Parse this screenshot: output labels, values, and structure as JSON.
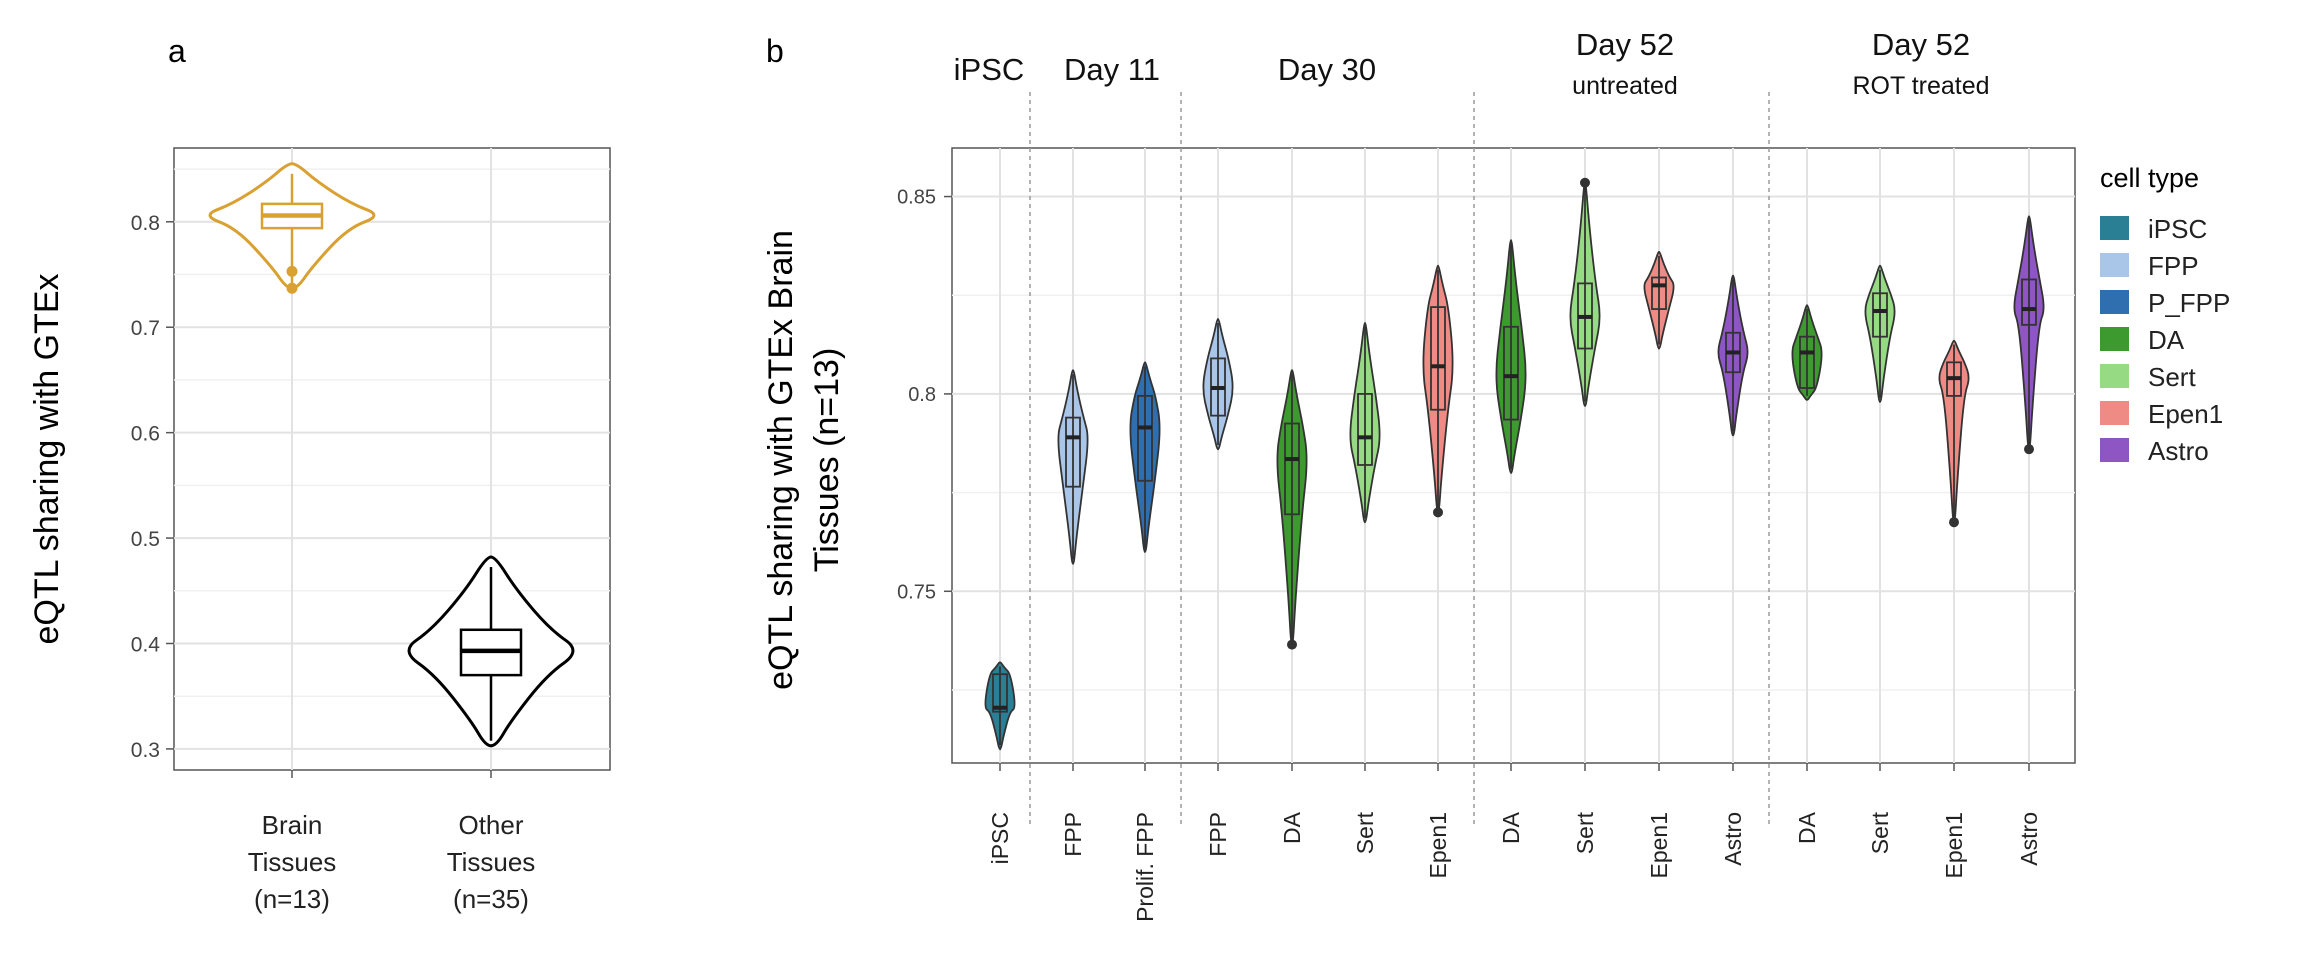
{
  "chart_data": [
    {
      "type": "violin",
      "panel_label": "a",
      "ylabel": "eQTL sharing with GTEx",
      "yticks": [
        0.3,
        0.4,
        0.5,
        0.6,
        0.7,
        0.8
      ],
      "ylim": [
        0.28,
        0.87
      ],
      "grid": true,
      "categories": [
        {
          "lines": [
            "Brain",
            "Tissues",
            "(n=13)"
          ],
          "color": "#d9a032",
          "min": 0.737,
          "q1": 0.794,
          "median": 0.806,
          "q3": 0.817,
          "max": 0.855,
          "outliers": [
            0.737,
            0.753
          ]
        },
        {
          "lines": [
            "Other",
            "Tissues",
            "(n=35)"
          ],
          "color": "#000000",
          "min": 0.303,
          "q1": 0.37,
          "median": 0.393,
          "q3": 0.413,
          "max": 0.482,
          "outliers": []
        }
      ]
    },
    {
      "type": "violin",
      "panel_label": "b",
      "ylabel_lines": [
        "eQTL sharing with GTEx Brain",
        "Tissues (n=13)"
      ],
      "yticks": [
        0.75,
        0.8,
        0.85
      ],
      "ylim": [
        0.7065,
        0.8623
      ],
      "grid": true,
      "groups": [
        {
          "title": "iPSC",
          "subtitle": ""
        },
        {
          "title": "Day 11",
          "subtitle": ""
        },
        {
          "title": "Day 30",
          "subtitle": ""
        },
        {
          "title": "Day 52",
          "subtitle": "untreated"
        },
        {
          "title": "Day 52",
          "subtitle": "ROT treated"
        }
      ],
      "violins": [
        {
          "label": "iPSC",
          "cell_type": "iPSC",
          "min": 0.71,
          "q1": 0.7195,
          "median": 0.7205,
          "q3": 0.729,
          "max": 0.732,
          "outliers": []
        },
        {
          "label": "FPP",
          "cell_type": "FPP",
          "min": 0.757,
          "q1": 0.7765,
          "median": 0.789,
          "q3": 0.794,
          "max": 0.806,
          "outliers": []
        },
        {
          "label": "Prolif. FPP",
          "cell_type": "P_FPP",
          "min": 0.76,
          "q1": 0.778,
          "median": 0.7915,
          "q3": 0.7995,
          "max": 0.808,
          "outliers": []
        },
        {
          "label": "FPP",
          "cell_type": "FPP",
          "min": 0.786,
          "q1": 0.7945,
          "median": 0.8015,
          "q3": 0.809,
          "max": 0.819,
          "outliers": []
        },
        {
          "label": "DA",
          "cell_type": "DA",
          "min": 0.7365,
          "q1": 0.7695,
          "median": 0.7835,
          "q3": 0.7925,
          "max": 0.806,
          "outliers": [
            0.7365
          ]
        },
        {
          "label": "Sert",
          "cell_type": "Sert",
          "min": 0.7675,
          "q1": 0.782,
          "median": 0.789,
          "q3": 0.8,
          "max": 0.818,
          "outliers": []
        },
        {
          "label": "Epen1",
          "cell_type": "Epen1",
          "min": 0.77,
          "q1": 0.796,
          "median": 0.807,
          "q3": 0.822,
          "max": 0.8325,
          "outliers": [
            0.77
          ]
        },
        {
          "label": "DA",
          "cell_type": "DA",
          "min": 0.78,
          "q1": 0.7935,
          "median": 0.8045,
          "q3": 0.817,
          "max": 0.839,
          "outliers": []
        },
        {
          "label": "Sert",
          "cell_type": "Sert",
          "min": 0.797,
          "q1": 0.8115,
          "median": 0.8195,
          "q3": 0.828,
          "max": 0.8535,
          "outliers": [
            0.8535
          ]
        },
        {
          "label": "Epen1",
          "cell_type": "Epen1",
          "min": 0.8115,
          "q1": 0.8215,
          "median": 0.8275,
          "q3": 0.8295,
          "max": 0.836,
          "outliers": []
        },
        {
          "label": "Astro",
          "cell_type": "Astro",
          "min": 0.7895,
          "q1": 0.8055,
          "median": 0.8105,
          "q3": 0.8155,
          "max": 0.83,
          "outliers": []
        },
        {
          "label": "DA",
          "cell_type": "DA",
          "min": 0.7985,
          "q1": 0.8015,
          "median": 0.8105,
          "q3": 0.8145,
          "max": 0.8225,
          "outliers": []
        },
        {
          "label": "Sert",
          "cell_type": "Sert",
          "min": 0.798,
          "q1": 0.8145,
          "median": 0.821,
          "q3": 0.8255,
          "max": 0.8325,
          "outliers": []
        },
        {
          "label": "Epen1",
          "cell_type": "Epen1",
          "min": 0.7675,
          "q1": 0.7995,
          "median": 0.804,
          "q3": 0.808,
          "max": 0.8135,
          "outliers": [
            0.7675
          ]
        },
        {
          "label": "Astro",
          "cell_type": "Astro",
          "min": 0.786,
          "q1": 0.8175,
          "median": 0.8215,
          "q3": 0.829,
          "max": 0.845,
          "outliers": [
            0.786
          ]
        }
      ],
      "legend": {
        "title": "cell type",
        "position": "right",
        "items": [
          {
            "label": "iPSC",
            "color": "#2b7f95"
          },
          {
            "label": "FPP",
            "color": "#a9c6e8"
          },
          {
            "label": "P_FPP",
            "color": "#2f6fb0"
          },
          {
            "label": "DA",
            "color": "#3c9a2e"
          },
          {
            "label": "Sert",
            "color": "#96da84"
          },
          {
            "label": "Epen1",
            "color": "#ef8b85"
          },
          {
            "label": "Astro",
            "color": "#8e56c3"
          }
        ]
      }
    }
  ]
}
